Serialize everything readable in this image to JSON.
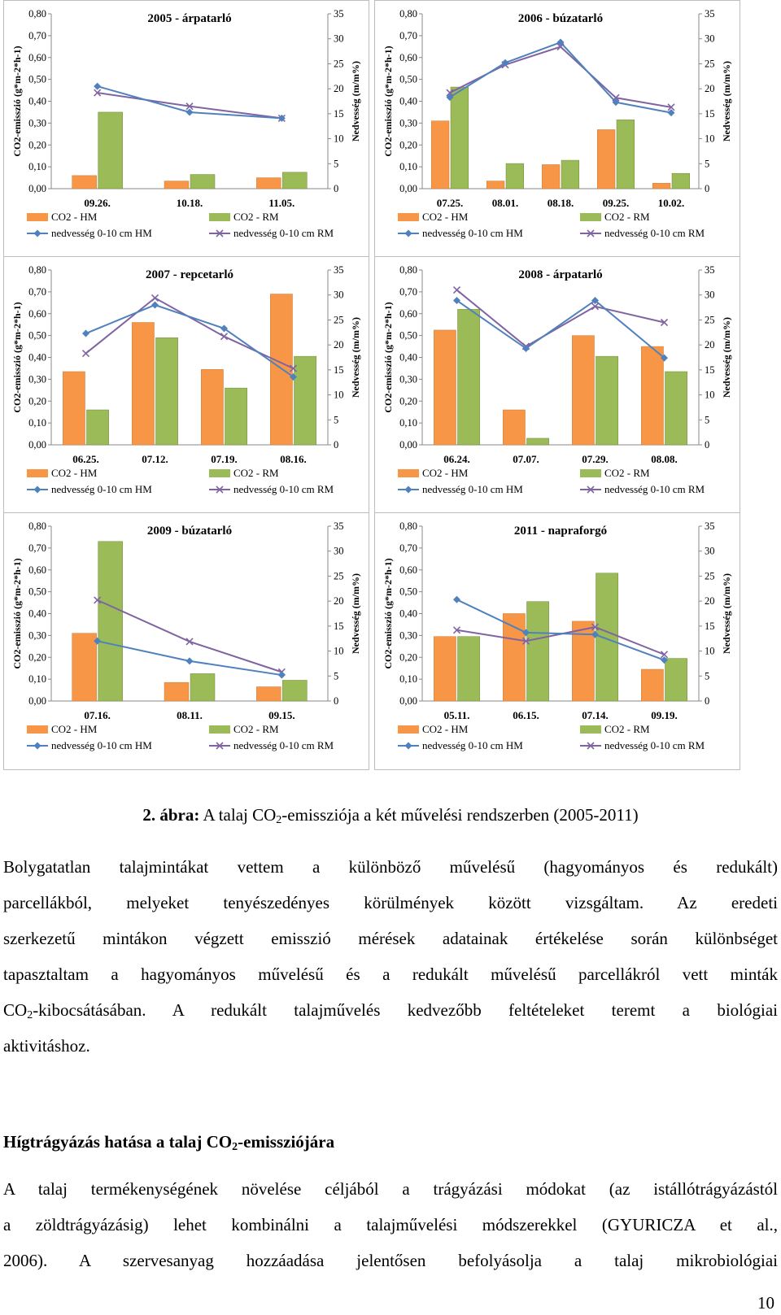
{
  "figure": {
    "charts": [
      {
        "title": "2005 - árpatarló",
        "categories": [
          "09.26.",
          "10.18.",
          "11.05."
        ],
        "co2_hm": [
          0.06,
          0.035,
          0.05
        ],
        "co2_rm": [
          0.35,
          0.065,
          0.075
        ],
        "moist_hm": [
          20.5,
          15.3,
          14.1
        ],
        "moist_rm": [
          19.2,
          16.5,
          14.1
        ]
      },
      {
        "title": "2006 - búzatarló",
        "categories": [
          "07.25.",
          "08.01.",
          "08.18.",
          "09.25.",
          "10.02."
        ],
        "co2_hm": [
          0.31,
          0.035,
          0.11,
          0.27,
          0.025
        ],
        "co2_rm": [
          0.465,
          0.115,
          0.13,
          0.315,
          0.07
        ],
        "moist_hm": [
          18.3,
          25.2,
          29.3,
          17.3,
          15.2
        ],
        "moist_rm": [
          19.2,
          24.8,
          28.4,
          18.2,
          16.3
        ]
      },
      {
        "title": "2007 - repcetarló",
        "categories": [
          "06.25.",
          "07.12.",
          "07.19.",
          "08.16."
        ],
        "co2_hm": [
          0.335,
          0.56,
          0.345,
          0.69
        ],
        "co2_rm": [
          0.16,
          0.49,
          0.26,
          0.405
        ],
        "moist_hm": [
          22.3,
          28.0,
          23.3,
          13.6
        ],
        "moist_rm": [
          18.3,
          29.4,
          21.7,
          15.3
        ]
      },
      {
        "title": "2008 - árpatarló",
        "categories": [
          "06.24.",
          "07.07.",
          "07.29.",
          "08.08."
        ],
        "co2_hm": [
          0.525,
          0.16,
          0.5,
          0.45
        ],
        "co2_rm": [
          0.62,
          0.03,
          0.405,
          0.335
        ],
        "moist_hm": [
          28.9,
          19.3,
          28.9,
          17.4
        ],
        "moist_rm": [
          31.0,
          19.7,
          27.7,
          24.5
        ]
      },
      {
        "title": "2009 - búzatarló",
        "categories": [
          "07.16.",
          "08.11.",
          "09.15."
        ],
        "co2_hm": [
          0.31,
          0.085,
          0.065
        ],
        "co2_rm": [
          0.73,
          0.125,
          0.095
        ],
        "moist_hm": [
          12.0,
          8.0,
          5.2
        ],
        "moist_rm": [
          20.2,
          11.9,
          5.8
        ]
      },
      {
        "title": "2011 - napraforgó",
        "categories": [
          "05.11.",
          "06.15.",
          "07.14.",
          "09.19."
        ],
        "co2_hm": [
          0.295,
          0.4,
          0.365,
          0.145
        ],
        "co2_rm": [
          0.295,
          0.455,
          0.585,
          0.195
        ],
        "moist_hm": [
          20.3,
          13.7,
          13.3,
          8.2
        ],
        "moist_rm": [
          14.2,
          12.0,
          14.8,
          9.3
        ]
      }
    ],
    "y_left_ticks": [
      "0,80",
      "0,70",
      "0,60",
      "0,50",
      "0,40",
      "0,30",
      "0,20",
      "0,10",
      "0,00"
    ],
    "y_right_ticks": [
      "35",
      "30",
      "25",
      "20",
      "15",
      "10",
      "5",
      "0"
    ],
    "ylabel_left": "CO2-emisszió (g*m-2*h-1)",
    "ylabel_right": "Nedvesség (m/m%)",
    "legend": {
      "hm_bar": "CO2 - HM",
      "rm_bar": "CO2 - RM",
      "hm_line": "nedvesség 0-10 cm HM",
      "rm_line": "nedvesség 0-10 cm RM"
    },
    "colors": {
      "hm_bar": "#f79646",
      "rm_bar": "#9bbb59",
      "hm_line": "#4f81bd",
      "rm_line": "#8064a2"
    }
  },
  "chart_data": [
    {
      "type": "bar+line",
      "title": "2005 - árpatarló",
      "categories": [
        "09.26.",
        "10.18.",
        "11.05."
      ],
      "series": [
        {
          "name": "CO2 - HM",
          "values": [
            0.06,
            0.035,
            0.05
          ]
        },
        {
          "name": "CO2 - RM",
          "values": [
            0.35,
            0.065,
            0.075
          ]
        },
        {
          "name": "nedvesség 0-10 cm HM",
          "axis": "right",
          "values": [
            20.5,
            15.3,
            14.1
          ]
        },
        {
          "name": "nedvesség 0-10 cm RM",
          "axis": "right",
          "values": [
            19.2,
            16.5,
            14.1
          ]
        }
      ],
      "ylim": [
        0,
        0.8
      ],
      "y2lim": [
        0,
        35
      ]
    },
    {
      "type": "bar+line",
      "title": "2006 - búzatarló",
      "categories": [
        "07.25.",
        "08.01.",
        "08.18.",
        "09.25.",
        "10.02."
      ],
      "series": [
        {
          "name": "CO2 - HM",
          "values": [
            0.31,
            0.035,
            0.11,
            0.27,
            0.025
          ]
        },
        {
          "name": "CO2 - RM",
          "values": [
            0.465,
            0.115,
            0.13,
            0.315,
            0.07
          ]
        },
        {
          "name": "nedvesség 0-10 cm HM",
          "axis": "right",
          "values": [
            18.3,
            25.2,
            29.3,
            17.3,
            15.2
          ]
        },
        {
          "name": "nedvesség 0-10 cm RM",
          "axis": "right",
          "values": [
            19.2,
            24.8,
            28.4,
            18.2,
            16.3
          ]
        }
      ],
      "ylim": [
        0,
        0.8
      ],
      "y2lim": [
        0,
        35
      ]
    },
    {
      "type": "bar+line",
      "title": "2007 - repcetarló",
      "categories": [
        "06.25.",
        "07.12.",
        "07.19.",
        "08.16."
      ],
      "series": [
        {
          "name": "CO2 - HM",
          "values": [
            0.335,
            0.56,
            0.345,
            0.69
          ]
        },
        {
          "name": "CO2 - RM",
          "values": [
            0.16,
            0.49,
            0.26,
            0.405
          ]
        },
        {
          "name": "nedvesség 0-10 cm HM",
          "axis": "right",
          "values": [
            22.3,
            28.0,
            23.3,
            13.6
          ]
        },
        {
          "name": "nedvesség 0-10 cm RM",
          "axis": "right",
          "values": [
            18.3,
            29.4,
            21.7,
            15.3
          ]
        }
      ],
      "ylim": [
        0,
        0.8
      ],
      "y2lim": [
        0,
        35
      ]
    },
    {
      "type": "bar+line",
      "title": "2008 - árpatarló",
      "categories": [
        "06.24.",
        "07.07.",
        "07.29.",
        "08.08."
      ],
      "series": [
        {
          "name": "CO2 - HM",
          "values": [
            0.525,
            0.16,
            0.5,
            0.45
          ]
        },
        {
          "name": "CO2 - RM",
          "values": [
            0.62,
            0.03,
            0.405,
            0.335
          ]
        },
        {
          "name": "nedvesség 0-10 cm HM",
          "axis": "right",
          "values": [
            28.9,
            19.3,
            28.9,
            17.4
          ]
        },
        {
          "name": "nedvesség 0-10 cm RM",
          "axis": "right",
          "values": [
            31.0,
            19.7,
            27.7,
            24.5
          ]
        }
      ],
      "ylim": [
        0,
        0.8
      ],
      "y2lim": [
        0,
        35
      ]
    },
    {
      "type": "bar+line",
      "title": "2009 - búzatarló",
      "categories": [
        "07.16.",
        "08.11.",
        "09.15."
      ],
      "series": [
        {
          "name": "CO2 - HM",
          "values": [
            0.31,
            0.085,
            0.065
          ]
        },
        {
          "name": "CO2 - RM",
          "values": [
            0.73,
            0.125,
            0.095
          ]
        },
        {
          "name": "nedvesség 0-10 cm HM",
          "axis": "right",
          "values": [
            12.0,
            8.0,
            5.2
          ]
        },
        {
          "name": "nedvesség 0-10 cm RM",
          "axis": "right",
          "values": [
            20.2,
            11.9,
            5.8
          ]
        }
      ],
      "ylim": [
        0,
        0.8
      ],
      "y2lim": [
        0,
        35
      ]
    },
    {
      "type": "bar+line",
      "title": "2011 - napraforgó",
      "categories": [
        "05.11.",
        "06.15.",
        "07.14.",
        "09.19."
      ],
      "series": [
        {
          "name": "CO2 - HM",
          "values": [
            0.295,
            0.4,
            0.365,
            0.145
          ]
        },
        {
          "name": "CO2 - RM",
          "values": [
            0.295,
            0.455,
            0.585,
            0.195
          ]
        },
        {
          "name": "nedvesség 0-10 cm HM",
          "axis": "right",
          "values": [
            20.3,
            13.7,
            13.3,
            8.2
          ]
        },
        {
          "name": "nedvesség 0-10 cm RM",
          "axis": "right",
          "values": [
            14.2,
            12.0,
            14.8,
            9.3
          ]
        }
      ],
      "ylim": [
        0,
        0.8
      ],
      "y2lim": [
        0,
        35
      ]
    }
  ],
  "caption": {
    "label": "2. ábra:",
    "text_a": " A talaj CO",
    "sub": "2",
    "text_b": "-emissziója a két művelési rendszerben (2005-2011)"
  },
  "paragraph1": {
    "l1": "Bolygatatlan talajmintákat vettem a különböző művelésű (hagyományos és redukált)",
    "l2": "parcellákból, melyeket tenyészedényes körülmények között vizsgáltam. Az eredeti",
    "l3": "szerkezetű mintákon végzett emisszió mérések adatainak értékelése során különbséget",
    "l4": "tapasztaltam a hagyományos művelésű és a redukált művelésű parcellákról vett minták",
    "l5a": "CO",
    "l5sub": "2",
    "l5b": "-kibocsátásában. A redukált talajművelés kedvezőbb feltételeket teremt a biológiai",
    "l6": "aktivitáshoz."
  },
  "heading": {
    "a": "Hígtrágyázás hatása a talaj CO",
    "sub": "2",
    "b": "-emissziójára"
  },
  "paragraph2": {
    "l1": "A talaj termékenységének növelése céljából a trágyázási módokat (az istállótrágyázástól",
    "l2": "a zöldtrágyázásig) lehet kombinálni a talajművelési módszerekkel (GYURICZA et al.,",
    "l3": "2006). A szervesanyag hozzáadása jelentősen befolyásolja a talaj mikrobiológiai"
  },
  "page_number": "10"
}
